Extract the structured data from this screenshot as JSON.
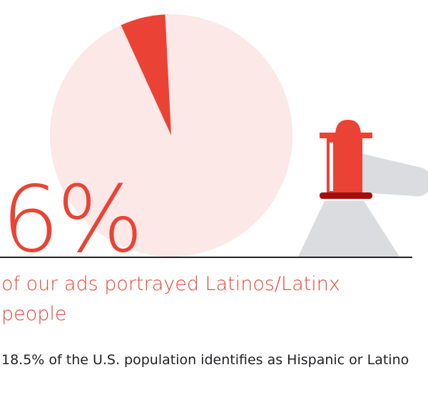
{
  "chart_data": {
    "type": "pie",
    "values": [
      6,
      94
    ],
    "value_labels": [
      "6%",
      null
    ],
    "colors": [
      "#ea4335",
      "#fce8e6"
    ]
  },
  "headline": "of our ads portrayed Latinos/Latinx people",
  "note": "18.5% of the U.S. population identifies as Hispanic or Latino"
}
